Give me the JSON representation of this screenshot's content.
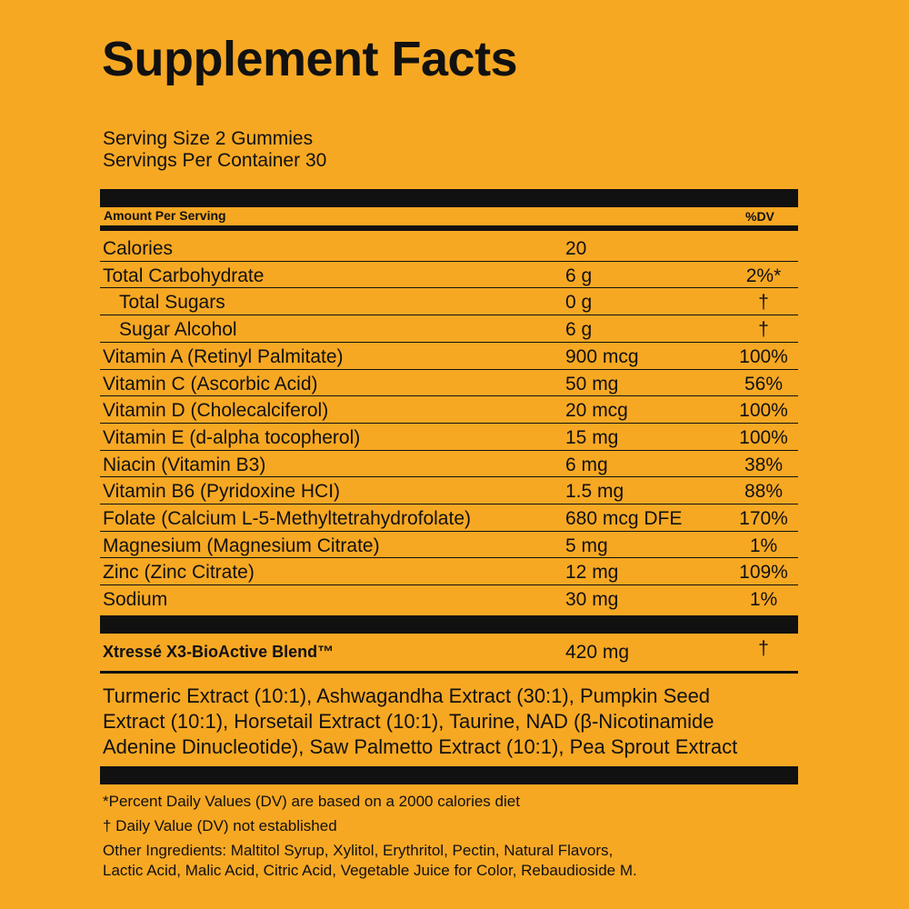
{
  "title": "Supplement Facts",
  "serving": {
    "size": "Serving Size 2 Gummies",
    "per_container": "Servings Per Container 30"
  },
  "table": {
    "header": {
      "amount": "Amount Per Serving",
      "dv": "%DV"
    },
    "rows": [
      {
        "name": "Calories",
        "amount": "20",
        "dv": ""
      },
      {
        "name": "Total Carbohydrate",
        "amount": "6 g",
        "dv": "2%*",
        "sub_rows": [
          {
            "name": "Total Sugars",
            "amount": "0 g",
            "dv": "†"
          },
          {
            "name": "Sugar Alcohol",
            "amount": "6 g",
            "dv": "†"
          }
        ]
      },
      {
        "name": "Vitamin A (Retinyl Palmitate)",
        "amount": "900 mcg",
        "dv": "100%"
      },
      {
        "name": "Vitamin C (Ascorbic Acid)",
        "amount": "50 mg",
        "dv": "56%"
      },
      {
        "name": "Vitamin D (Cholecalciferol)",
        "amount": "20 mcg",
        "dv": "100%"
      },
      {
        "name": "Vitamin E (d-alpha tocopherol)",
        "amount": "15 mg",
        "dv": "100%"
      },
      {
        "name": "Niacin (Vitamin B3)",
        "amount": "6 mg",
        "dv": "38%"
      },
      {
        "name": "Vitamin B6 (Pyridoxine HCI)",
        "amount": "1.5 mg",
        "dv": "88%"
      },
      {
        "name": "Folate (Calcium L-5-Methyltetrahydrofolate)",
        "amount": "680 mcg DFE",
        "dv": "170%"
      },
      {
        "name": "Magnesium (Magnesium Citrate)",
        "amount": "5 mg",
        "dv": "1%"
      },
      {
        "name": "Zinc (Zinc Citrate)",
        "amount": "12 mg",
        "dv": "109%"
      },
      {
        "name": "Sodium",
        "amount": "30 mg",
        "dv": "1%"
      }
    ],
    "blend": {
      "name": "Xtressé X3-BioActive Blend™",
      "amount": "420 mg",
      "dv": "†",
      "ingredients": [
        "Turmeric Extract (10:1), Ashwagandha Extract (30:1), Pumpkin Seed",
        "Extract (10:1), Horsetail Extract (10:1), Taurine, NAD (β-Nicotinamide",
        "Adenine Dinucleotide), Saw Palmetto Extract (10:1), Pea Sprout Extract"
      ]
    }
  },
  "footnotes": [
    "*Percent Daily Values (DV) are based on a 2000 calories diet",
    "† Daily Value (DV) not established"
  ],
  "other_ingredients": [
    "Other Ingredients: Maltitol Syrup, Xylitol, Erythritol, Pectin, Natural Flavors,",
    "Lactic Acid, Malic Acid, Citric Acid, Vegetable Juice for Color, Rebaudioside M."
  ]
}
